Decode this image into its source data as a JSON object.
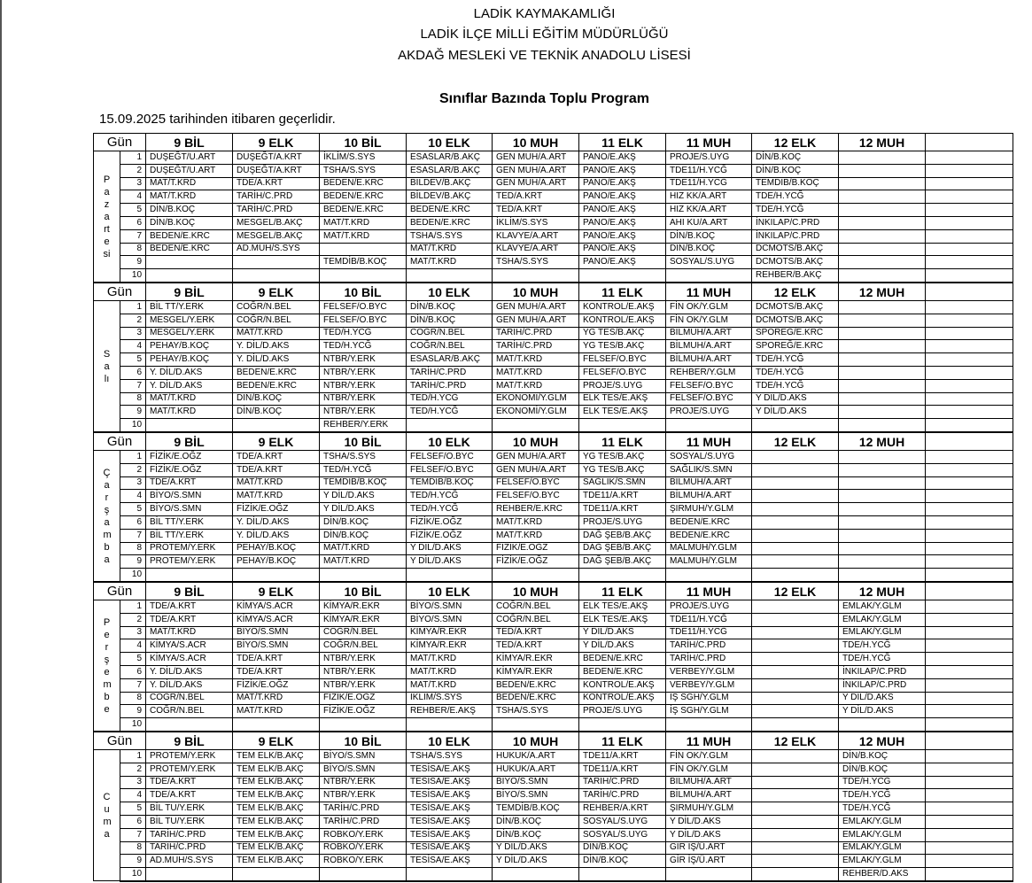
{
  "header": {
    "lines": [
      "LADİK KAYMAKAMLIĞI",
      "LADİK İLÇE MİLLİ EĞİTİM MÜDÜRLÜĞÜ",
      "AKDAĞ MESLEKİ VE TEKNİK ANADOLU LİSESİ"
    ],
    "title": "Sınıflar Bazında Toplu Program",
    "valid_from": "15.09.2025 tarihinden itibaren geçerlidir."
  },
  "schedule": {
    "gun_label": "Gün",
    "classes": [
      "9 BİL",
      "9 ELK",
      "10 BİL",
      "10 ELK",
      "10 MUH",
      "11 ELK",
      "11 MUH",
      "12 ELK",
      "12 MUH"
    ],
    "periods": [
      1,
      2,
      3,
      4,
      5,
      6,
      7,
      8,
      9,
      10
    ],
    "days": [
      {
        "name": "Pazartesi",
        "rows": [
          [
            "DUŞEĞT/U.ART",
            "DUŞEĞT/A.KRT",
            "İKLİM/S.SYS",
            "ESASLAR/B.AKÇ",
            "GEN MUH/A.ART",
            "PANO/E.AKŞ",
            "PROJE/S.UYG",
            "DİN/B.KOÇ",
            null
          ],
          [
            "DUŞEĞT/U.ART",
            "DUŞEĞT/A.KRT",
            "TSHA/S.SYS",
            "ESASLAR/B.AKÇ",
            "GEN MUH/A.ART",
            "PANO/E.AKŞ",
            "TDE11/H.YCĞ",
            "DİN/B.KOÇ",
            null
          ],
          [
            "MAT/T.KRD",
            "TDE/A.KRT",
            "BEDEN/E.KRC",
            "BİLDEV/B.AKÇ",
            "GEN MUH/A.ART",
            "PANO/E.AKŞ",
            "TDE11/H.YCĞ",
            "TEMDİB/B.KOÇ",
            null
          ],
          [
            "MAT/T.KRD",
            "TARİH/C.PRD",
            "BEDEN/E.KRC",
            "BİLDEV/B.AKÇ",
            "TED/A.KRT",
            "PANO/E.AKŞ",
            "HIZ KK/A.ART",
            "TDE/H.YCĞ",
            null
          ],
          [
            "DİN/B.KOÇ",
            "TARİH/C.PRD",
            "BEDEN/E.KRC",
            "BEDEN/E.KRC",
            "TED/A.KRT",
            "PANO/E.AKŞ",
            "HIZ KK/A.ART",
            "TDE/H.YCĞ",
            null
          ],
          [
            "DİN/B.KOÇ",
            "MESGEL/B.AKÇ",
            "MAT/T.KRD",
            "BEDEN/E.KRC",
            "İKLİM/S.SYS",
            "PANO/E.AKŞ",
            "AHI KU/A.ART",
            "İNKILAP/C.PRD",
            null
          ],
          [
            "BEDEN/E.KRC",
            "MESGEL/B.AKÇ",
            "MAT/T.KRD",
            "TSHA/S.SYS",
            "KLAVYE/A.ART",
            "PANO/E.AKŞ",
            "DİN/B.KOÇ",
            "İNKILAP/C.PRD",
            null
          ],
          [
            "BEDEN/E.KRC",
            "AD.MUH/S.SYS",
            null,
            "MAT/T.KRD",
            "KLAVYE/A.ART",
            "PANO/E.AKŞ",
            "DİN/B.KOÇ",
            "DCMOTS/B.AKÇ",
            null
          ],
          [
            null,
            null,
            "TEMDİB/B.KOÇ",
            "MAT/T.KRD",
            "TSHA/S.SYS",
            "PANO/E.AKŞ",
            "SOSYAL/S.UYG",
            "DCMOTS/B.AKÇ",
            null
          ],
          [
            null,
            null,
            null,
            null,
            null,
            null,
            null,
            "REHBER/B.AKÇ",
            null
          ]
        ]
      },
      {
        "name": "Salı",
        "rows": [
          [
            "BİL TT/Y.ERK",
            "COĞR/N.BEL",
            "FELSEF/O.BYC",
            "DİN/B.KOÇ",
            "GEN MUH/A.ART",
            "KONTROL/E.AKŞ",
            "FİN OK/Y.GLM",
            "DCMOTS/B.AKÇ",
            null
          ],
          [
            "MESGEL/Y.ERK",
            "COĞR/N.BEL",
            "FELSEF/O.BYC",
            "DİN/B.KOÇ",
            "GEN MUH/A.ART",
            "KONTROL/E.AKŞ",
            "FİN OK/Y.GLM",
            "DCMOTS/B.AKÇ",
            null
          ],
          [
            "MESGEL/Y.ERK",
            "MAT/T.KRD",
            "TED/H.YCĞ",
            "COĞR/N.BEL",
            "TARİH/C.PRD",
            "YG TES/B.AKÇ",
            "BİLMUH/A.ART",
            "SPOREĞ/E.KRC",
            null
          ],
          [
            "PEHAY/B.KOÇ",
            "Y. DİL/D.AKS",
            "TED/H.YCĞ",
            "COĞR/N.BEL",
            "TARİH/C.PRD",
            "YG TES/B.AKÇ",
            "BİLMUH/A.ART",
            "SPOREĞ/E.KRC",
            null
          ],
          [
            "PEHAY/B.KOÇ",
            "Y. DİL/D.AKS",
            "NTBR/Y.ERK",
            "ESASLAR/B.AKÇ",
            "MAT/T.KRD",
            "FELSEF/O.BYC",
            "BİLMUH/A.ART",
            "TDE/H.YCĞ",
            null
          ],
          [
            "Y. DİL/D.AKS",
            "BEDEN/E.KRC",
            "NTBR/Y.ERK",
            "TARİH/C.PRD",
            "MAT/T.KRD",
            "FELSEF/O.BYC",
            "REHBER/Y.GLM",
            "TDE/H.YCĞ",
            null
          ],
          [
            "Y. DİL/D.AKS",
            "BEDEN/E.KRC",
            "NTBR/Y.ERK",
            "TARİH/C.PRD",
            "MAT/T.KRD",
            "PROJE/S.UYG",
            "FELSEF/O.BYC",
            "TDE/H.YCĞ",
            null
          ],
          [
            "MAT/T.KRD",
            "DİN/B.KOÇ",
            "NTBR/Y.ERK",
            "TED/H.YCĞ",
            "EKONOMİ/Y.GLM",
            "ELK TES/E.AKŞ",
            "FELSEF/O.BYC",
            "Y DİL/D.AKS",
            null
          ],
          [
            "MAT/T.KRD",
            "DİN/B.KOÇ",
            "NTBR/Y.ERK",
            "TED/H.YCĞ",
            "EKONOMİ/Y.GLM",
            "ELK TES/E.AKŞ",
            "PROJE/S.UYG",
            "Y DİL/D.AKS",
            null
          ],
          [
            null,
            null,
            "REHBER/Y.ERK",
            null,
            null,
            null,
            null,
            null,
            null
          ]
        ]
      },
      {
        "name": "Çarşamba",
        "rows": [
          [
            "FİZİK/E.OĞZ",
            "TDE/A.KRT",
            "TSHA/S.SYS",
            "FELSEF/O.BYC",
            "GEN MUH/A.ART",
            "YG TES/B.AKÇ",
            "SOSYAL/S.UYG",
            null,
            null
          ],
          [
            "FİZİK/E.OĞZ",
            "TDE/A.KRT",
            "TED/H.YCĞ",
            "FELSEF/O.BYC",
            "GEN MUH/A.ART",
            "YG TES/B.AKÇ",
            "SAĞLIK/S.SMN",
            null,
            null
          ],
          [
            "TDE/A.KRT",
            "MAT/T.KRD",
            "TEMDİB/B.KOÇ",
            "TEMDİB/B.KOÇ",
            "FELSEF/O.BYC",
            "SAĞLIK/S.SMN",
            "BİLMUH/A.ART",
            null,
            null
          ],
          [
            "BİYO/S.SMN",
            "MAT/T.KRD",
            "Y DİL/D.AKS",
            "TED/H.YCĞ",
            "FELSEF/O.BYC",
            "TDE11/A.KRT",
            "BİLMUH/A.ART",
            null,
            null
          ],
          [
            "BİYO/S.SMN",
            "FİZİK/E.OĞZ",
            "Y DİL/D.AKS",
            "TED/H.YCĞ",
            "REHBER/E.KRC",
            "TDE11/A.KRT",
            "ŞIRMUH/Y.GLM",
            null,
            null
          ],
          [
            "BİL TT/Y.ERK",
            "Y. DİL/D.AKS",
            "DİN/B.KOÇ",
            "FİZİK/E.OĞZ",
            "MAT/T.KRD",
            "PROJE/S.UYG",
            "BEDEN/E.KRC",
            null,
            null
          ],
          [
            "BİL TT/Y.ERK",
            "Y. DİL/D.AKS",
            "DİN/B.KOÇ",
            "FİZİK/E.OĞZ",
            "MAT/T.KRD",
            "DAĞ ŞEB/B.AKÇ",
            "BEDEN/E.KRC",
            null,
            null
          ],
          [
            "PROTEM/Y.ERK",
            "PEHAY/B.KOÇ",
            "MAT/T.KRD",
            "Y DİL/D.AKS",
            "FİZİK/E.OĞZ",
            "DAĞ ŞEB/B.AKÇ",
            "MALMUH/Y.GLM",
            null,
            null
          ],
          [
            "PROTEM/Y.ERK",
            "PEHAY/B.KOÇ",
            "MAT/T.KRD",
            "Y DİL/D.AKS",
            "FİZİK/E.OĞZ",
            "DAĞ ŞEB/B.AKÇ",
            "MALMUH/Y.GLM",
            null,
            null
          ],
          [
            null,
            null,
            null,
            null,
            null,
            null,
            null,
            null,
            null
          ]
        ]
      },
      {
        "name": "Perşembe",
        "rows": [
          [
            "TDE/A.KRT",
            "KİMYA/S.ACR",
            "KİMYA/R.EKR",
            "BİYO/S.SMN",
            "COĞR/N.BEL",
            "ELK TES/E.AKŞ",
            "PROJE/S.UYG",
            null,
            "EMLAK/Y.GLM"
          ],
          [
            "TDE/A.KRT",
            "KİMYA/S.ACR",
            "KİMYA/R.EKR",
            "BİYO/S.SMN",
            "COĞR/N.BEL",
            "ELK TES/E.AKŞ",
            "TDE11/H.YCĞ",
            null,
            "EMLAK/Y.GLM"
          ],
          [
            "MAT/T.KRD",
            "BİYO/S.SMN",
            "COĞR/N.BEL",
            "KİMYA/R.EKR",
            "TED/A.KRT",
            "Y DİL/D.AKS",
            "TDE11/H.YCĞ",
            null,
            "EMLAK/Y.GLM"
          ],
          [
            "KİMYA/S.ACR",
            "BİYO/S.SMN",
            "COĞR/N.BEL",
            "KİMYA/R.EKR",
            "TED/A.KRT",
            "Y DİL/D.AKS",
            "TARİH/C.PRD",
            null,
            "TDE/H.YCĞ"
          ],
          [
            "KİMYA/S.ACR",
            "TDE/A.KRT",
            "NTBR/Y.ERK",
            "MAT/T.KRD",
            "KİMYA/R.EKR",
            "BEDEN/E.KRC",
            "TARİH/C.PRD",
            null,
            "TDE/H.YCĞ"
          ],
          [
            "Y. DİL/D.AKS",
            "TDE/A.KRT",
            "NTBR/Y.ERK",
            "MAT/T.KRD",
            "KİMYA/R.EKR",
            "BEDEN/E.KRC",
            "VERBEY/Y.GLM",
            null,
            "İNKILAP/C.PRD"
          ],
          [
            "Y. DİL/D.AKS",
            "FİZİK/E.OĞZ",
            "NTBR/Y.ERK",
            "MAT/T.KRD",
            "BEDEN/E.KRC",
            "KONTROL/E.AKŞ",
            "VERBEY/Y.GLM",
            null,
            "İNKILAP/C.PRD"
          ],
          [
            "COĞR/N.BEL",
            "MAT/T.KRD",
            "FİZİK/E.OĞZ",
            "İKLİM/S.SYS",
            "BEDEN/E.KRC",
            "KONTROL/E.AKŞ",
            "İŞ SGH/Y.GLM",
            null,
            "Y DİL/D.AKS"
          ],
          [
            "COĞR/N.BEL",
            "MAT/T.KRD",
            "FİZİK/E.OĞZ",
            "REHBER/E.AKŞ",
            "TSHA/S.SYS",
            "PROJE/S.UYG",
            "İŞ SGH/Y.GLM",
            null,
            "Y DİL/D.AKS"
          ],
          [
            null,
            null,
            null,
            null,
            null,
            null,
            null,
            null,
            null
          ]
        ]
      },
      {
        "name": "Cuma",
        "rows": [
          [
            "PROTEM/Y.ERK",
            "TEM ELK/B.AKÇ",
            "BİYO/S.SMN",
            "TSHA/S.SYS",
            "HUKUK/A.ART",
            "TDE11/A.KRT",
            "FİN OK/Y.GLM",
            null,
            "DİN/B.KOÇ"
          ],
          [
            "PROTEM/Y.ERK",
            "TEM ELK/B.AKÇ",
            "BİYO/S.SMN",
            "TESİSA/E.AKŞ",
            "HUKUK/A.ART",
            "TDE11/A.KRT",
            "FİN OK/Y.GLM",
            null,
            "DİN/B.KOÇ"
          ],
          [
            "TDE/A.KRT",
            "TEM ELK/B.AKÇ",
            "NTBR/Y.ERK",
            "TESİSA/E.AKŞ",
            "BİYO/S.SMN",
            "TARİH/C.PRD",
            "BİLMUH/A.ART",
            null,
            "TDE/H.YCĞ"
          ],
          [
            "TDE/A.KRT",
            "TEM ELK/B.AKÇ",
            "NTBR/Y.ERK",
            "TESİSA/E.AKŞ",
            "BİYO/S.SMN",
            "TARİH/C.PRD",
            "BİLMUH/A.ART",
            null,
            "TDE/H.YCĞ"
          ],
          [
            "BİL TU/Y.ERK",
            "TEM ELK/B.AKÇ",
            "TARİH/C.PRD",
            "TESİSA/E.AKŞ",
            "TEMDİB/B.KOÇ",
            "REHBER/A.KRT",
            "ŞIRMUH/Y.GLM",
            null,
            "TDE/H.YCĞ"
          ],
          [
            "BİL TU/Y.ERK",
            "TEM ELK/B.AKÇ",
            "TARİH/C.PRD",
            "TESİSA/E.AKŞ",
            "DİN/B.KOÇ",
            "SOSYAL/S.UYG",
            "Y DİL/D.AKS",
            null,
            "EMLAK/Y.GLM"
          ],
          [
            "TARİH/C.PRD",
            "TEM ELK/B.AKÇ",
            "ROBKO/Y.ERK",
            "TESİSA/E.AKŞ",
            "DİN/B.KOÇ",
            "SOSYAL/S.UYG",
            "Y DİL/D.AKS",
            null,
            "EMLAK/Y.GLM"
          ],
          [
            "TARİH/C.PRD",
            "TEM ELK/B.AKÇ",
            "ROBKO/Y.ERK",
            "TESİSA/E.AKŞ",
            "Y DİL/D.AKS",
            "DİN/B.KOÇ",
            "GİR İŞ/Ü.ART",
            null,
            "EMLAK/Y.GLM"
          ],
          [
            "AD.MUH/S.SYS",
            "TEM ELK/B.AKÇ",
            "ROBKO/Y.ERK",
            "TESİSA/E.AKŞ",
            "Y DİL/D.AKS",
            "DİN/B.KOÇ",
            "GİR İŞ/Ü.ART",
            null,
            "EMLAK/Y.GLM"
          ],
          [
            null,
            null,
            null,
            null,
            null,
            null,
            null,
            null,
            "REHBER/D.AKS"
          ]
        ]
      }
    ]
  }
}
